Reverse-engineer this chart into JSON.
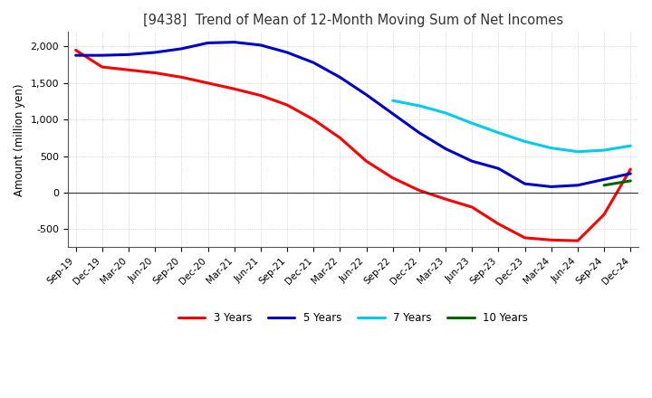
{
  "title": "[9438]  Trend of Mean of 12-Month Moving Sum of Net Incomes",
  "ylabel": "Amount (million yen)",
  "ylim": [
    -750,
    2200
  ],
  "yticks": [
    -500,
    0,
    500,
    1000,
    1500,
    2000
  ],
  "line_colors": {
    "3yr": "#ff0000",
    "5yr": "#0000cc",
    "7yr": "#00ccee",
    "10yr": "#006600"
  },
  "legend_labels": [
    "3 Years",
    "5 Years",
    "7 Years",
    "10 Years"
  ],
  "xtick_labels": [
    "Sep-19",
    "Dec-19",
    "Mar-20",
    "Jun-20",
    "Sep-20",
    "Dec-20",
    "Mar-21",
    "Jun-21",
    "Sep-21",
    "Dec-21",
    "Mar-22",
    "Jun-22",
    "Sep-22",
    "Dec-22",
    "Mar-23",
    "Jun-23",
    "Sep-23",
    "Dec-23",
    "Mar-24",
    "Jun-24",
    "Sep-24",
    "Dec-24"
  ],
  "series_3yr": [
    1950,
    1720,
    1680,
    1640,
    1580,
    1500,
    1420,
    1330,
    1200,
    1000,
    750,
    430,
    200,
    30,
    -90,
    -200,
    -430,
    -620,
    -650,
    -660,
    -300,
    320
  ],
  "series_5yr": [
    1880,
    1880,
    1890,
    1920,
    1970,
    2050,
    2060,
    2020,
    1920,
    1780,
    1580,
    1340,
    1080,
    820,
    600,
    430,
    330,
    120,
    80,
    100,
    180,
    260
  ],
  "series_7yr": [
    null,
    null,
    null,
    null,
    null,
    null,
    null,
    null,
    null,
    null,
    null,
    null,
    1260,
    1190,
    1090,
    950,
    820,
    700,
    610,
    560,
    580,
    640
  ],
  "series_10yr": [
    null,
    null,
    null,
    null,
    null,
    null,
    null,
    null,
    null,
    null,
    null,
    null,
    null,
    null,
    null,
    null,
    null,
    null,
    null,
    null,
    100,
    160
  ],
  "background_color": "#ffffff",
  "grid_color": "#aaaaaa"
}
